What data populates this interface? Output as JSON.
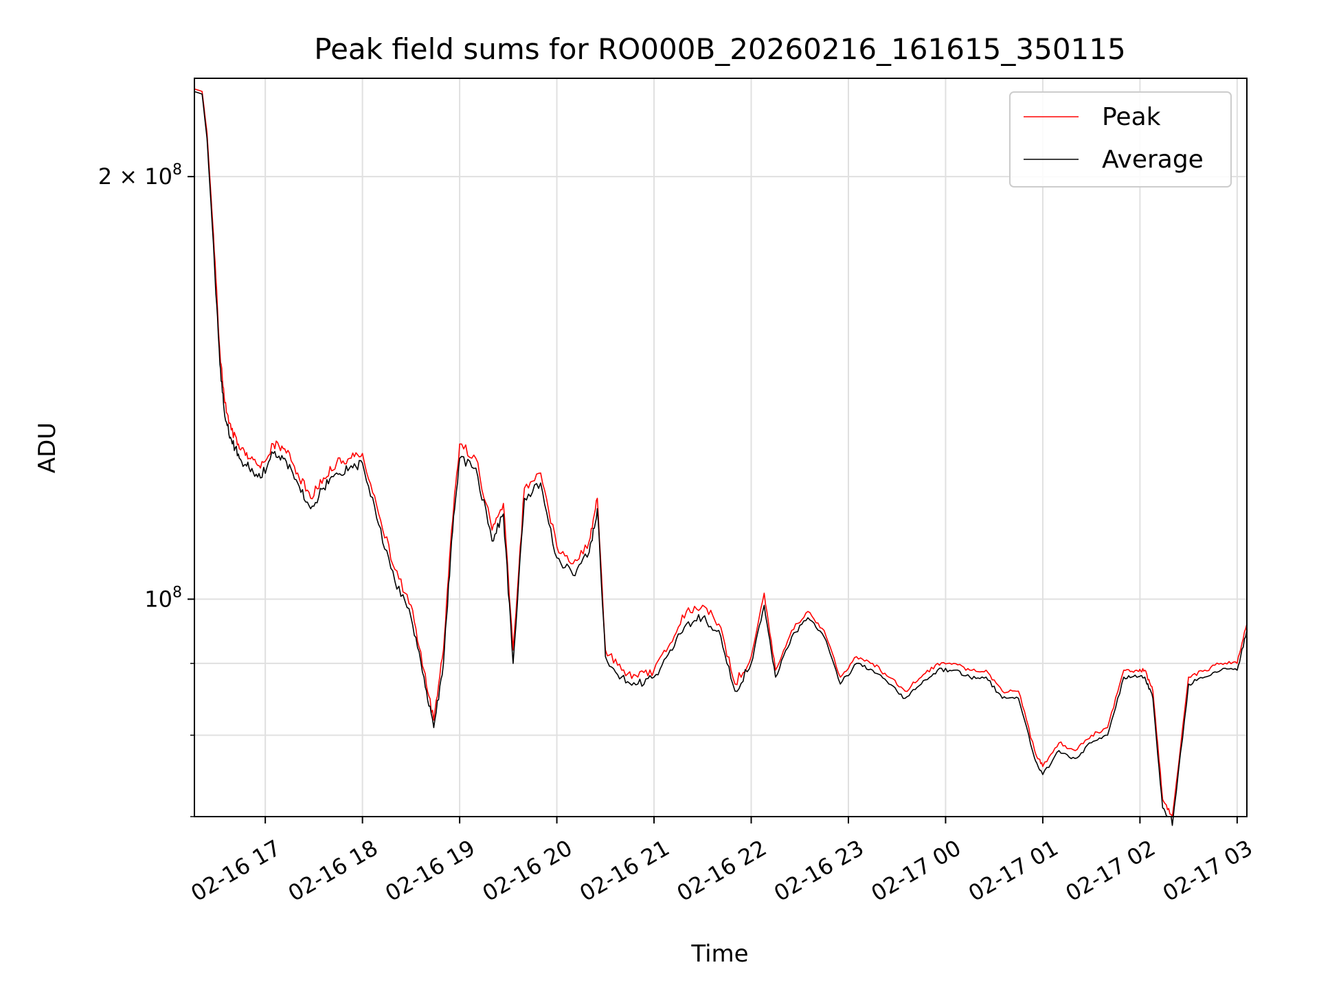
{
  "chart_data": {
    "type": "line",
    "title": "Peak field sums for RO000B_20260216_161615_350115",
    "xlabel": "Time",
    "ylabel": "ADU",
    "yscale": "log",
    "xlim": [
      "2026-02-16T16:16:15",
      "2026-02-17T03:06:00"
    ],
    "ylim": [
      70000000,
      235000000
    ],
    "x_ticks": [
      "02-16 17",
      "02-16 18",
      "02-16 19",
      "02-16 20",
      "02-16 21",
      "02-16 22",
      "02-16 23",
      "02-17 00",
      "02-17 01",
      "02-17 02",
      "02-17 03"
    ],
    "x_tick_values": [
      "2026-02-16T17:00",
      "2026-02-16T18:00",
      "2026-02-16T19:00",
      "2026-02-16T20:00",
      "2026-02-16T21:00",
      "2026-02-16T22:00",
      "2026-02-16T23:00",
      "2026-02-17T00:00",
      "2026-02-17T01:00",
      "2026-02-17T02:00",
      "2026-02-17T03:00"
    ],
    "y_major_ticks": [
      {
        "value": 100000000,
        "mantissa": "",
        "base": "10",
        "exp": "8"
      },
      {
        "value": 200000000,
        "mantissa": "2 × ",
        "base": "10",
        "exp": "8"
      }
    ],
    "y_minor_ticks": [
      70000000,
      80000000,
      90000000
    ],
    "grid": true,
    "legend_position": "top-right",
    "x": [
      "2026-02-16T16:16",
      "2026-02-16T16:21",
      "2026-02-16T16:24",
      "2026-02-16T16:28",
      "2026-02-16T16:32",
      "2026-02-16T16:35",
      "2026-02-16T16:39",
      "2026-02-16T16:44",
      "2026-02-16T16:50",
      "2026-02-16T16:57",
      "2026-02-16T17:05",
      "2026-02-16T17:12",
      "2026-02-16T17:20",
      "2026-02-16T17:28",
      "2026-02-16T17:36",
      "2026-02-16T17:44",
      "2026-02-16T17:52",
      "2026-02-16T18:00",
      "2026-02-16T18:10",
      "2026-02-16T18:20",
      "2026-02-16T18:30",
      "2026-02-16T18:38",
      "2026-02-16T18:44",
      "2026-02-16T18:50",
      "2026-02-16T18:55",
      "2026-02-16T19:00",
      "2026-02-16T19:10",
      "2026-02-16T19:20",
      "2026-02-16T19:27",
      "2026-02-16T19:33",
      "2026-02-16T19:40",
      "2026-02-16T19:50",
      "2026-02-16T20:00",
      "2026-02-16T20:10",
      "2026-02-16T20:20",
      "2026-02-16T20:25",
      "2026-02-16T20:30",
      "2026-02-16T20:40",
      "2026-02-16T20:50",
      "2026-02-16T21:00",
      "2026-02-16T21:10",
      "2026-02-16T21:20",
      "2026-02-16T21:30",
      "2026-02-16T21:40",
      "2026-02-16T21:50",
      "2026-02-16T22:00",
      "2026-02-16T22:08",
      "2026-02-16T22:15",
      "2026-02-16T22:25",
      "2026-02-16T22:35",
      "2026-02-16T22:45",
      "2026-02-16T22:55",
      "2026-02-16T23:05",
      "2026-02-16T23:15",
      "2026-02-16T23:25",
      "2026-02-16T23:35",
      "2026-02-16T23:45",
      "2026-02-16T23:55",
      "2026-02-17T00:05",
      "2026-02-17T00:15",
      "2026-02-17T00:25",
      "2026-02-17T00:35",
      "2026-02-17T00:45",
      "2026-02-17T00:55",
      "2026-02-17T01:00",
      "2026-02-17T01:10",
      "2026-02-17T01:20",
      "2026-02-17T01:30",
      "2026-02-17T01:40",
      "2026-02-17T01:50",
      "2026-02-17T01:58",
      "2026-02-17T02:03",
      "2026-02-17T02:08",
      "2026-02-17T02:14",
      "2026-02-17T02:20",
      "2026-02-17T02:30",
      "2026-02-17T02:40",
      "2026-02-17T02:50",
      "2026-02-17T03:00",
      "2026-02-17T03:06"
    ],
    "series": [
      {
        "name": "Peak",
        "color": "#ff0000",
        "values": [
          231000000,
          230000000,
          215000000,
          182000000,
          150000000,
          138000000,
          132000000,
          128000000,
          126000000,
          124000000,
          129000000,
          128000000,
          123000000,
          118000000,
          122000000,
          125000000,
          126000000,
          127000000,
          115000000,
          105000000,
          99000000,
          89000000,
          82000000,
          92000000,
          112000000,
          129000000,
          126000000,
          112000000,
          117000000,
          92000000,
          120000000,
          123000000,
          109000000,
          106000000,
          110000000,
          118000000,
          92000000,
          89000000,
          88000000,
          89000000,
          93000000,
          98000000,
          99000000,
          96000000,
          87000000,
          91000000,
          101000000,
          89000000,
          95000000,
          98000000,
          95000000,
          88000000,
          91000000,
          90000000,
          88000000,
          86000000,
          88000000,
          90000000,
          90000000,
          89000000,
          89000000,
          86000000,
          86000000,
          78000000,
          76000000,
          79000000,
          78000000,
          80000000,
          81000000,
          89000000,
          89000000,
          89000000,
          86000000,
          72000000,
          70000000,
          88000000,
          89000000,
          90000000,
          90000000,
          96000000
        ]
      },
      {
        "name": "Average",
        "color": "#000000",
        "values": [
          230000000,
          229000000,
          213000000,
          179000000,
          147000000,
          135000000,
          130000000,
          126000000,
          124000000,
          122000000,
          127000000,
          126000000,
          121000000,
          116000000,
          120000000,
          123000000,
          124000000,
          125000000,
          113000000,
          103000000,
          97000000,
          88000000,
          81000000,
          90000000,
          110000000,
          126000000,
          124000000,
          110000000,
          115000000,
          90000000,
          118000000,
          121000000,
          107000000,
          104000000,
          108000000,
          116000000,
          91000000,
          88000000,
          87000000,
          88000000,
          92000000,
          96000000,
          97000000,
          95000000,
          86000000,
          90000000,
          99000000,
          88000000,
          94000000,
          97000000,
          94000000,
          87000000,
          90000000,
          89000000,
          87000000,
          85000000,
          87000000,
          89000000,
          89000000,
          88000000,
          88000000,
          85000000,
          85000000,
          77000000,
          75000000,
          78000000,
          77000000,
          79000000,
          80000000,
          88000000,
          88000000,
          88000000,
          85000000,
          71000000,
          69000000,
          87000000,
          88000000,
          89000000,
          89000000,
          95000000
        ]
      }
    ]
  }
}
